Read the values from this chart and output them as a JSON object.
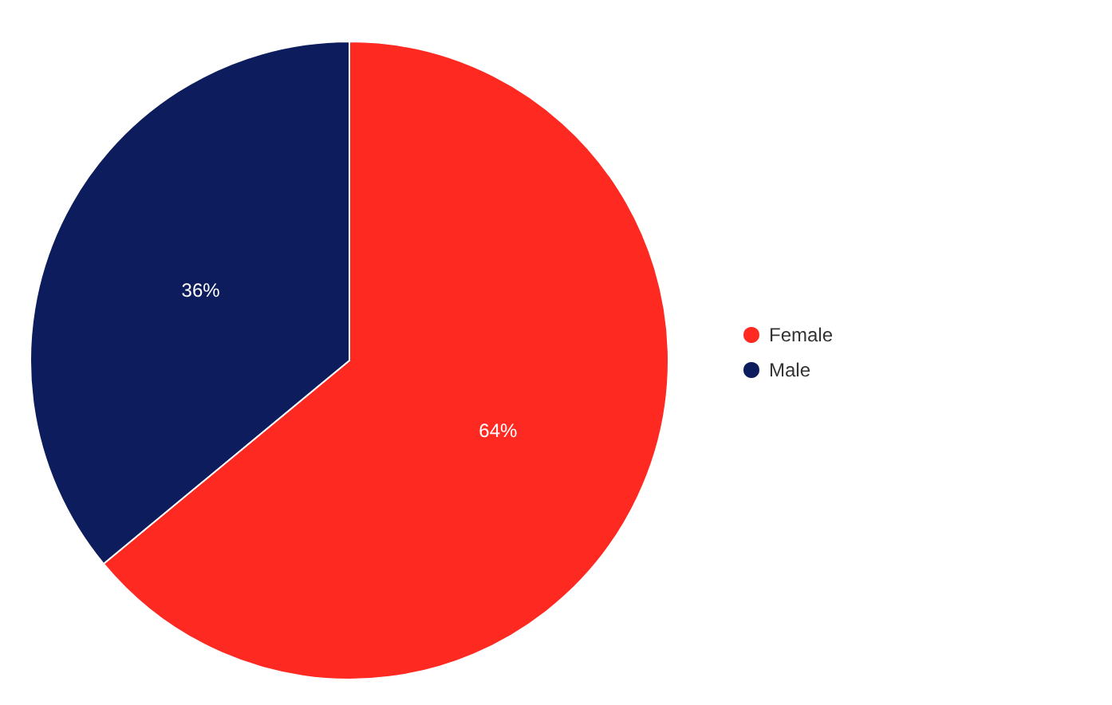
{
  "chart_data": {
    "type": "pie",
    "categories": [
      "Female",
      "Male"
    ],
    "values": [
      64,
      36
    ],
    "colors": [
      "#fe2a22",
      "#0d1c5c"
    ],
    "value_labels": [
      "64%",
      "36%"
    ],
    "legend": "right"
  }
}
